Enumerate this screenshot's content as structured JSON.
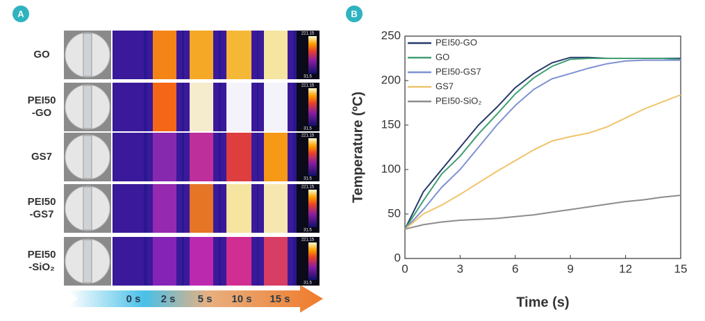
{
  "panel_labels": [
    "A",
    "B"
  ],
  "panel_a": {
    "rows": [
      {
        "label": [
          "GO"
        ]
      },
      {
        "label": [
          "PEI50",
          "-GO"
        ]
      },
      {
        "label": [
          "GS7"
        ]
      },
      {
        "label": [
          "PEI50",
          "-GS7"
        ]
      },
      {
        "label": [
          "PEI50",
          "-SiO₂"
        ]
      }
    ],
    "colorbar": {
      "max": "221.15",
      "min": "31.5"
    },
    "times": [
      "0 s",
      "2 s",
      "5 s",
      "10 s",
      "15 s"
    ]
  },
  "chart_data": {
    "type": "line",
    "x_label": "Time (s)",
    "y_label": "Temperature (ºC)",
    "x": [
      0,
      1,
      2,
      3,
      4,
      5,
      6,
      7,
      8,
      9,
      10,
      11,
      12,
      13,
      14,
      15
    ],
    "xlim": [
      0,
      15
    ],
    "xticks": [
      0,
      3,
      6,
      9,
      12,
      15
    ],
    "ylim": [
      0,
      250
    ],
    "yticks": [
      0,
      50,
      100,
      150,
      200,
      250
    ],
    "legend": "upper left",
    "series": [
      {
        "name": "PEI50-GO",
        "color": "#26386b",
        "values": [
          33,
          75,
          100,
          125,
          150,
          170,
          192,
          208,
          220,
          226,
          226,
          225,
          225,
          225,
          225,
          225
        ]
      },
      {
        "name": "GO",
        "color": "#3f9e72",
        "values": [
          33,
          65,
          95,
          115,
          140,
          162,
          185,
          203,
          216,
          224,
          225,
          225,
          225,
          225,
          225,
          224
        ]
      },
      {
        "name": "PEI50-GS7",
        "color": "#7d90d2",
        "values": [
          33,
          55,
          80,
          100,
          125,
          150,
          172,
          190,
          202,
          208,
          214,
          219,
          222,
          223,
          223,
          223
        ]
      },
      {
        "name": "GS7",
        "color": "#efc46a",
        "values": [
          33,
          50,
          60,
          72,
          85,
          98,
          110,
          122,
          132,
          137,
          141,
          148,
          158,
          168,
          176,
          184
        ]
      },
      {
        "name": "PEI50-SiO₂",
        "color": "#8c8c8c",
        "values": [
          33,
          38,
          41,
          43,
          44,
          45,
          47,
          49,
          52,
          55,
          58,
          61,
          64,
          66,
          69,
          71
        ]
      }
    ]
  }
}
